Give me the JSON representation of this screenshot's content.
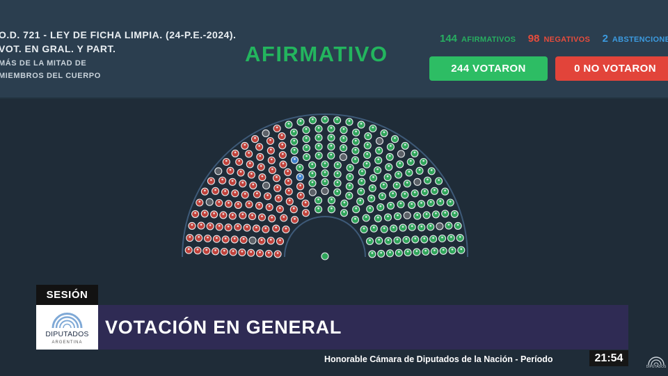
{
  "session_info": {
    "line1": "O.D. 721 - LEY DE FICHA LIMPIA. (24-P.E.-2024).",
    "line2": "VOT. EN GRAL. Y PART.",
    "line3": "MÁS DE LA MITAD DE",
    "line4": "MIEMBROS DEL CUERPO"
  },
  "result": "AFIRMATIVO",
  "counts": {
    "affirmative": {
      "value": "144",
      "label": "AFIRMATIVOS",
      "color": "#27ae60"
    },
    "negative": {
      "value": "98",
      "label": "NEGATIVOS",
      "color": "#e74c3c"
    },
    "abstention": {
      "value": "2",
      "label": "ABSTENCIONES",
      "color": "#3c9be0"
    }
  },
  "buttons": {
    "voted": "244 VOTARON",
    "not_voted": "0 NO VOTARON"
  },
  "hemicycle": {
    "affirmative_seats": 144,
    "negative_seats": 98,
    "abstention_seats": 2,
    "empty_seats": 13,
    "colors": {
      "affirmative": "#2fa55a",
      "negative": "#c0413a",
      "abstention": "#3c7fc9",
      "empty": "#5c6168"
    }
  },
  "lower_third": {
    "tag": "SESIÓN",
    "logo_name": "DIPUTADOS",
    "logo_sub": "ARGENTINA",
    "title": "VOTACIÓN EN GENERAL"
  },
  "ticker": "Honorable Cámara de Diputados de la Nación - Período",
  "clock": "21:54",
  "corner_logo": "DIPUTADOS"
}
